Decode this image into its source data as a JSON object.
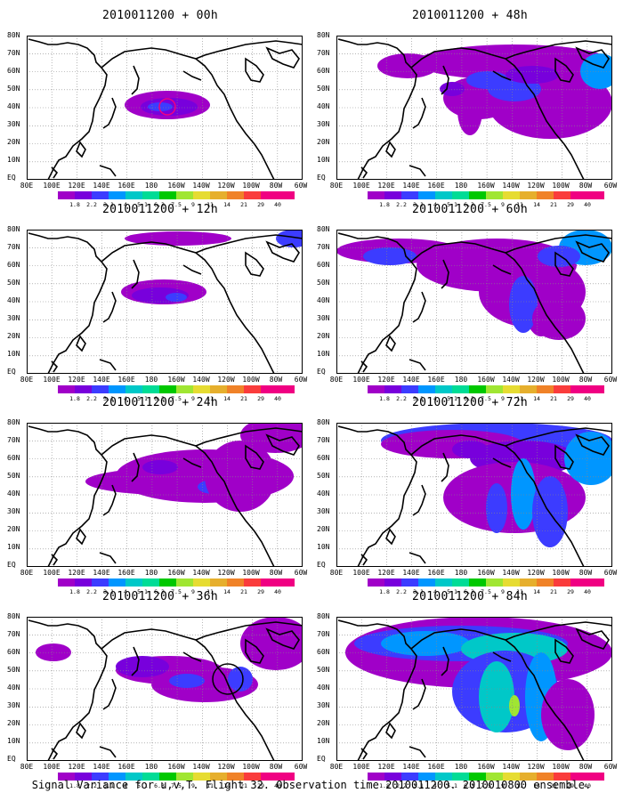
{
  "panels": [
    {
      "title": "2010011200 + 00h"
    },
    {
      "title": "2010011200 + 48h"
    },
    {
      "title": "2010011200 + 12h"
    },
    {
      "title": "2010011200 + 60h"
    },
    {
      "title": "2010011200 + 24h"
    },
    {
      "title": "2010011200 + 72h"
    },
    {
      "title": "2010011200 + 36h"
    },
    {
      "title": "2010011200 + 84h"
    }
  ],
  "lat_labels": [
    "80N",
    "70N",
    "60N",
    "50N",
    "40N",
    "30N",
    "20N",
    "10N",
    "EQ"
  ],
  "lon_labels": [
    "80E",
    "100E",
    "120E",
    "140E",
    "160E",
    "180",
    "160W",
    "140W",
    "120W",
    "100W",
    "80W",
    "60W"
  ],
  "colorbar": {
    "labels": [
      "1.8",
      "2.2",
      "3.1",
      "4",
      "5.1",
      "6.3",
      "7.5",
      "9",
      "11",
      "14",
      "21",
      "29",
      "40"
    ],
    "colors": [
      "#a000c8",
      "#7800dc",
      "#3c3cff",
      "#0096ff",
      "#00c8c8",
      "#00dc96",
      "#00c800",
      "#a0e632",
      "#e6dc32",
      "#e6af2d",
      "#f08228",
      "#fa3c3c",
      "#f00082"
    ]
  },
  "footer": "Signal Variance for u,v,T. Flight 32. Observation time 2010011200. 2010010800 ensemble."
}
